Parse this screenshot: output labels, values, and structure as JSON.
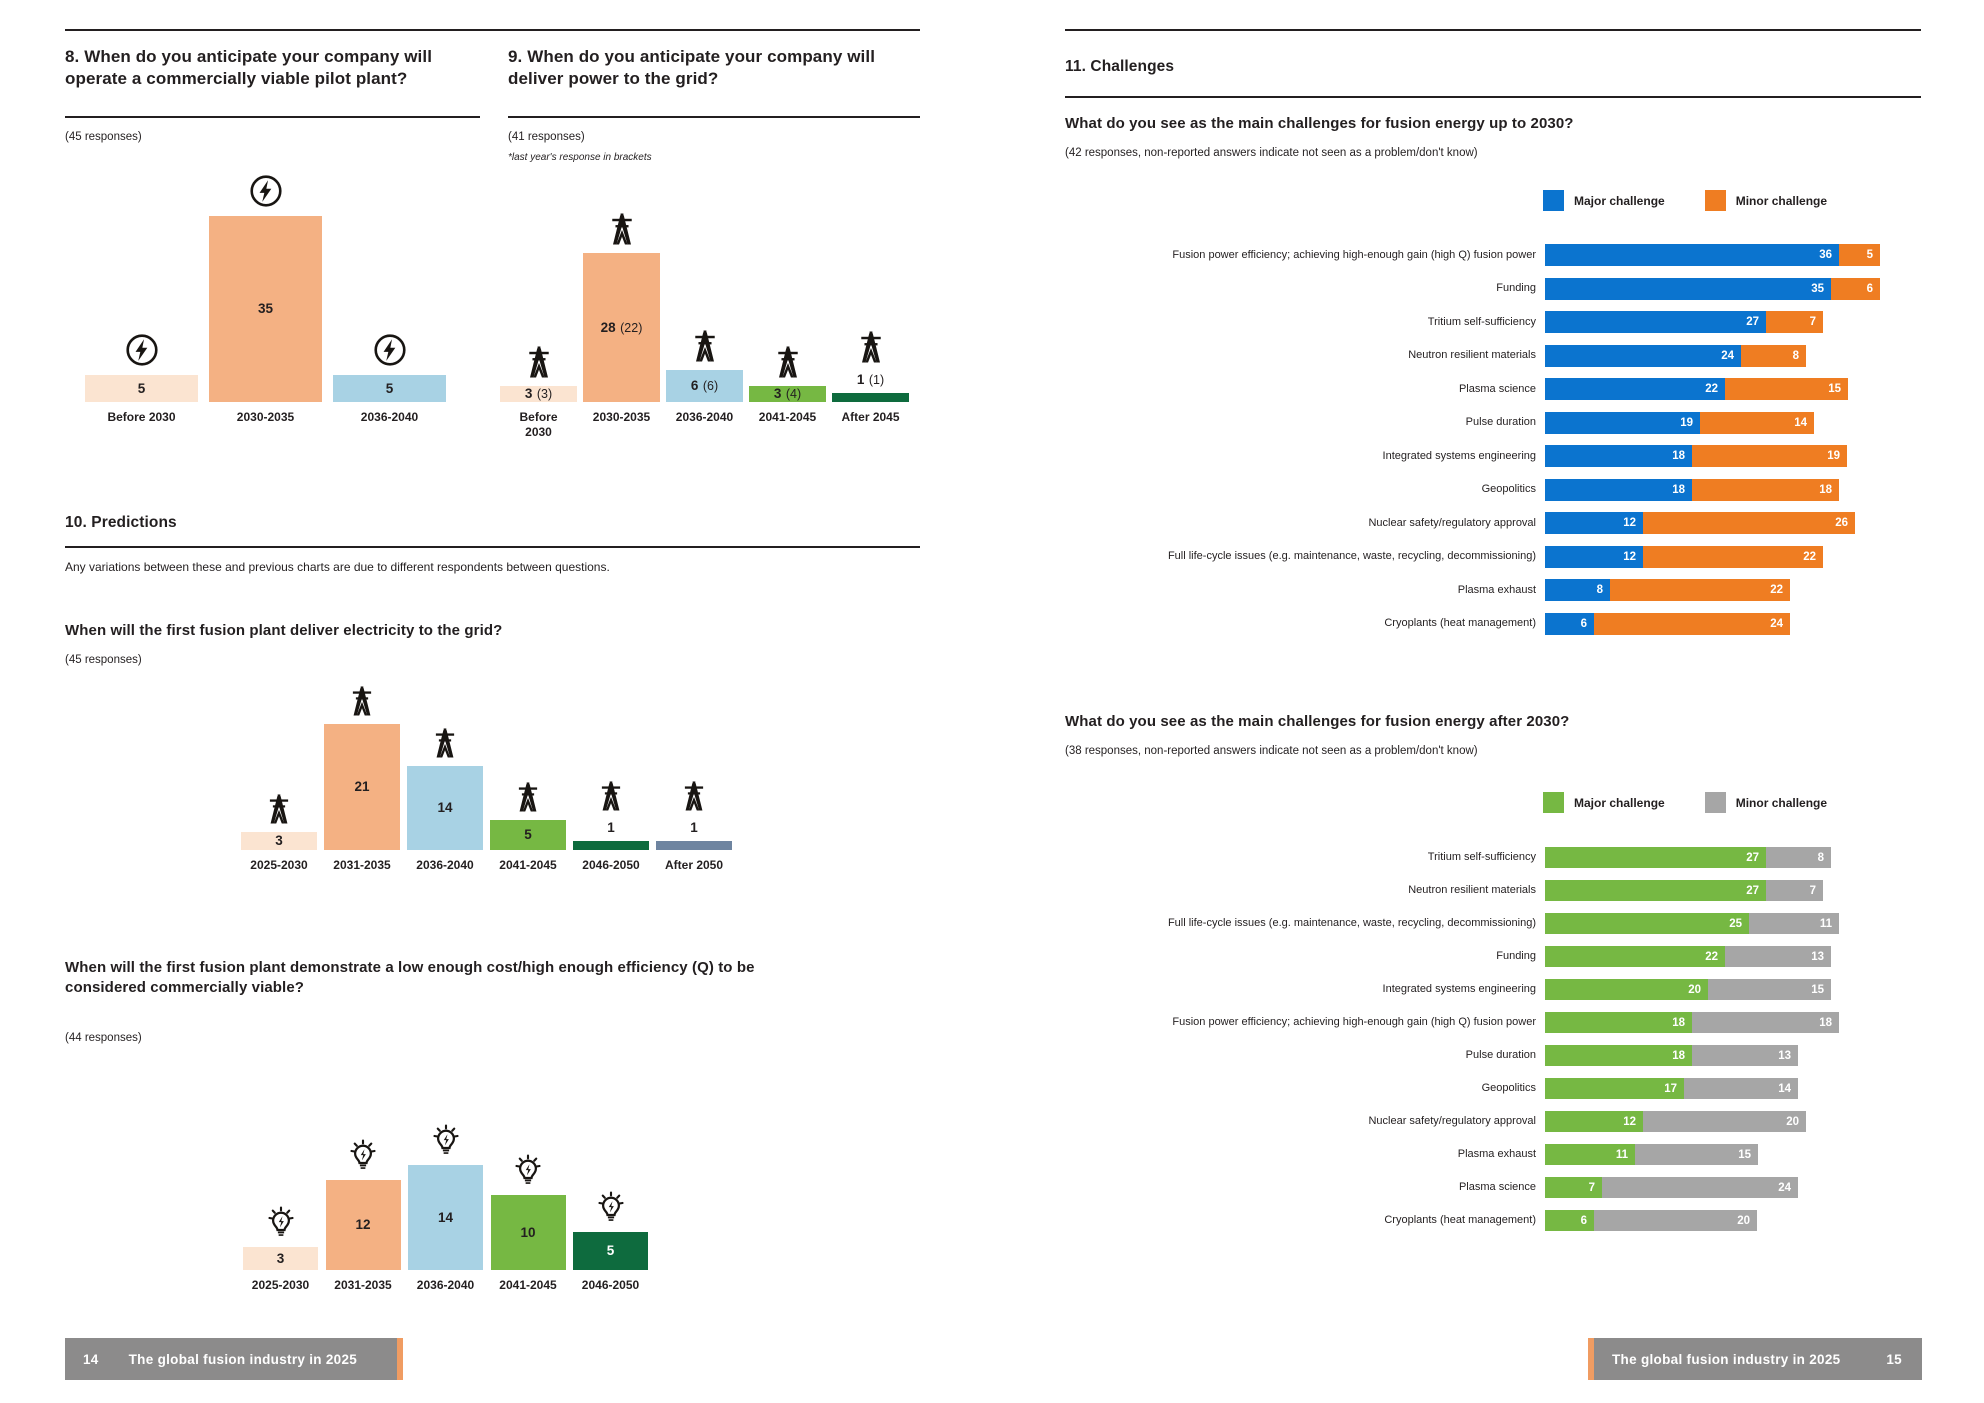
{
  "footers": {
    "left": {
      "page": "14",
      "title": "The global fusion industry in 2025"
    },
    "right": {
      "page": "15",
      "title": "The global fusion industry in 2025"
    }
  },
  "chart_data": [
    {
      "id": "q8",
      "type": "bar",
      "title": "8. When do you anticipate your company will operate a commercially viable pilot plant?",
      "subtitle": "(45 responses)",
      "icon": "bolt-circle-icon",
      "categories": [
        "Before 2030",
        "2030-2035",
        "2036-2040"
      ],
      "values": [
        5,
        35,
        5
      ],
      "colors": [
        "#fbe4d1",
        "#f4b183",
        "#a8d2e4"
      ],
      "label_colors": [
        "#231f20",
        "#231f20",
        "#231f20"
      ]
    },
    {
      "id": "q9",
      "type": "bar",
      "title": "9. When do you anticipate your company will deliver power to the grid?",
      "subtitle": "(41 responses)",
      "footnote": "*last year's response in brackets",
      "icon": "pylon-icon",
      "categories": [
        "Before\n2030",
        "2030-2035",
        "2036-2040",
        "2041-2045",
        "After 2045"
      ],
      "values": [
        3,
        28,
        6,
        3,
        1
      ],
      "prev_values": [
        3,
        22,
        6,
        4,
        1
      ],
      "colors": [
        "#fbe4d1",
        "#f4b183",
        "#a8d2e4",
        "#76b843",
        "#0e6b3e"
      ],
      "label_colors": [
        "#231f20",
        "#231f20",
        "#231f20",
        "#231f20",
        "#231f20"
      ]
    },
    {
      "id": "grid",
      "type": "bar",
      "section": "10. Predictions",
      "section_note": "Any variations between these and previous charts are due to different respondents between questions.",
      "title": "When will the first fusion plant deliver electricity to the grid?",
      "subtitle": "(45 responses)",
      "icon": "pylon-icon",
      "categories": [
        "2025-2030",
        "2031-2035",
        "2036-2040",
        "2041-2045",
        "2046-2050",
        "After 2050"
      ],
      "values": [
        3,
        21,
        14,
        5,
        1,
        1
      ],
      "colors": [
        "#fbe4d1",
        "#f4b183",
        "#a8d2e4",
        "#76b843",
        "#0e6b3e",
        "#6e84a0"
      ],
      "label_colors": [
        "#231f20",
        "#231f20",
        "#231f20",
        "#231f20",
        "#231f20",
        "#231f20"
      ]
    },
    {
      "id": "viability",
      "type": "bar",
      "title": "When will the first fusion plant demonstrate a low enough cost/high enough efficiency (Q) to be considered commercially viable?",
      "subtitle": "(44 responses)",
      "icon": "bulb-icon",
      "categories": [
        "2025-2030",
        "2031-2035",
        "2036-2040",
        "2041-2045",
        "2046-2050"
      ],
      "values": [
        3,
        12,
        14,
        10,
        5
      ],
      "colors": [
        "#fbe4d1",
        "#f4b183",
        "#a8d2e4",
        "#76b843",
        "#0e6b3e"
      ],
      "label_colors": [
        "#231f20",
        "#231f20",
        "#231f20",
        "#231f20",
        "#ffffff"
      ]
    },
    {
      "id": "challenges_2030",
      "type": "bar-h-stacked",
      "section": "11. Challenges",
      "title": "What do you see as the main challenges for fusion energy up to 2030?",
      "subtitle": "(42 responses, non-reported answers indicate not seen as a problem/don't know)",
      "legend": [
        "Major challenge",
        "Minor challenge"
      ],
      "colors": {
        "major": "#0b74cf",
        "minor": "#ef7d22"
      },
      "rows": [
        {
          "label": "Fusion power efficiency; achieving high-enough gain (high Q) fusion power",
          "major": 36,
          "minor": 5
        },
        {
          "label": "Funding",
          "major": 35,
          "minor": 6
        },
        {
          "label": "Tritium self-sufficiency",
          "major": 27,
          "minor": 7
        },
        {
          "label": "Neutron resilient materials",
          "major": 24,
          "minor": 8
        },
        {
          "label": "Plasma science",
          "major": 22,
          "minor": 15
        },
        {
          "label": "Pulse duration",
          "major": 19,
          "minor": 14
        },
        {
          "label": "Integrated systems engineering",
          "major": 18,
          "minor": 19
        },
        {
          "label": "Geopolitics",
          "major": 18,
          "minor": 18
        },
        {
          "label": "Nuclear safety/regulatory approval",
          "major": 12,
          "minor": 26
        },
        {
          "label": "Full life-cycle issues (e.g. maintenance, waste, recycling, decommissioning)",
          "major": 12,
          "minor": 22
        },
        {
          "label": "Plasma exhaust",
          "major": 8,
          "minor": 22
        },
        {
          "label": "Cryoplants (heat management)",
          "major": 6,
          "minor": 24
        }
      ]
    },
    {
      "id": "challenges_after_2030",
      "type": "bar-h-stacked",
      "title": "What do you see as the main challenges for fusion energy after 2030?",
      "subtitle": "(38 responses, non-reported answers indicate not seen as a problem/don't know)",
      "legend": [
        "Major challenge",
        "Minor challenge"
      ],
      "colors": {
        "major": "#76b843",
        "minor": "#a6a6a6"
      },
      "rows": [
        {
          "label": "Tritium self-sufficiency",
          "major": 27,
          "minor": 8
        },
        {
          "label": "Neutron resilient materials",
          "major": 27,
          "minor": 7
        },
        {
          "label": "Full life-cycle issues (e.g. maintenance, waste, recycling, decommissioning)",
          "major": 25,
          "minor": 11
        },
        {
          "label": "Funding",
          "major": 22,
          "minor": 13
        },
        {
          "label": "Integrated systems engineering",
          "major": 20,
          "minor": 15
        },
        {
          "label": "Fusion power efficiency; achieving high-enough gain (high Q) fusion power",
          "major": 18,
          "minor": 18
        },
        {
          "label": "Pulse duration",
          "major": 18,
          "minor": 13
        },
        {
          "label": "Geopolitics",
          "major": 17,
          "minor": 14
        },
        {
          "label": "Nuclear safety/regulatory approval",
          "major": 12,
          "minor": 20
        },
        {
          "label": "Plasma exhaust",
          "major": 11,
          "minor": 15
        },
        {
          "label": "Plasma science",
          "major": 7,
          "minor": 24
        },
        {
          "label": "Cryoplants (heat management)",
          "major": 6,
          "minor": 20
        }
      ]
    }
  ]
}
